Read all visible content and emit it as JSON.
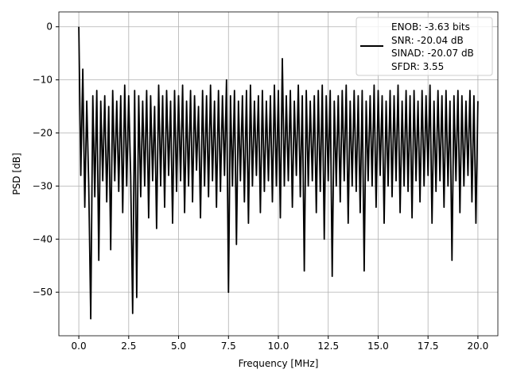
{
  "chart_data": {
    "type": "line",
    "title": "",
    "xlabel": "Frequency [MHz]",
    "ylabel": "PSD [dB]",
    "xlim": [
      -1,
      21
    ],
    "ylim": [
      -58.2,
      2.8
    ],
    "grid": true,
    "xticks": [
      0,
      2.5,
      5,
      7.5,
      10,
      12.5,
      15,
      17.5,
      20
    ],
    "xtick_labels": [
      "0.0",
      "2.5",
      "5.0",
      "7.5",
      "10.0",
      "12.5",
      "15.0",
      "17.5",
      "20.0"
    ],
    "yticks": [
      0,
      -10,
      -20,
      -30,
      -40,
      -50
    ],
    "ytick_labels": [
      "0",
      "−10",
      "−20",
      "−30",
      "−40",
      "−50"
    ],
    "legend": {
      "placement": "top-right",
      "label_lines": [
        "ENOB: -3.63 bits",
        "SNR: -20.04 dB",
        "SINAD: -20.07 dB",
        "SFDR: 3.55"
      ]
    },
    "x_start": 0,
    "x_step": 0.1,
    "series": [
      {
        "name": "ENOB: -3.63 bits SNR: -20.04 dB SINAD: -20.07 dB SFDR: 3.55",
        "color": "#000000",
        "values": [
          0,
          -28,
          -8,
          -34,
          -14,
          -30,
          -55,
          -13,
          -32,
          -12,
          -44,
          -14,
          -29,
          -13,
          -33,
          -15,
          -42,
          -12,
          -29,
          -14,
          -31,
          -13,
          -35,
          -11,
          -30,
          -13,
          -28,
          -54,
          -12,
          -51,
          -13,
          -32,
          -14,
          -30,
          -12,
          -36,
          -13,
          -29,
          -15,
          -38,
          -11,
          -30,
          -13,
          -34,
          -12,
          -28,
          -14,
          -37,
          -12,
          -31,
          -13,
          -29,
          -11,
          -35,
          -14,
          -30,
          -12,
          -33,
          -13,
          -27,
          -15,
          -36,
          -12,
          -30,
          -13,
          -32,
          -11,
          -29,
          -14,
          -34,
          -12,
          -31,
          -13,
          -28,
          -10,
          -50,
          -13,
          -30,
          -12,
          -41,
          -14,
          -29,
          -13,
          -33,
          -12,
          -37,
          -11,
          -30,
          -14,
          -28,
          -13,
          -35,
          -12,
          -31,
          -14,
          -29,
          -13,
          -33,
          -11,
          -30,
          -12,
          -36,
          -6,
          -30,
          -13,
          -29,
          -12,
          -34,
          -14,
          -28,
          -11,
          -32,
          -13,
          -46,
          -12,
          -30,
          -14,
          -29,
          -13,
          -35,
          -12,
          -31,
          -11,
          -40,
          -13,
          -29,
          -12,
          -47,
          -14,
          -30,
          -13,
          -33,
          -12,
          -29,
          -11,
          -37,
          -14,
          -30,
          -12,
          -31,
          -13,
          -35,
          -12,
          -46,
          -14,
          -29,
          -13,
          -30,
          -11,
          -34,
          -12,
          -28,
          -13,
          -37,
          -14,
          -30,
          -12,
          -32,
          -13,
          -29,
          -11,
          -35,
          -14,
          -30,
          -12,
          -31,
          -13,
          -36,
          -12,
          -29,
          -14,
          -33,
          -12,
          -30,
          -13,
          -28,
          -11,
          -37,
          -14,
          -31,
          -12,
          -29,
          -13,
          -34,
          -12,
          -30,
          -14,
          -44,
          -13,
          -29,
          -12,
          -35,
          -13,
          -30,
          -14,
          -28,
          -12,
          -33,
          -13,
          -37,
          -14
        ]
      }
    ]
  }
}
